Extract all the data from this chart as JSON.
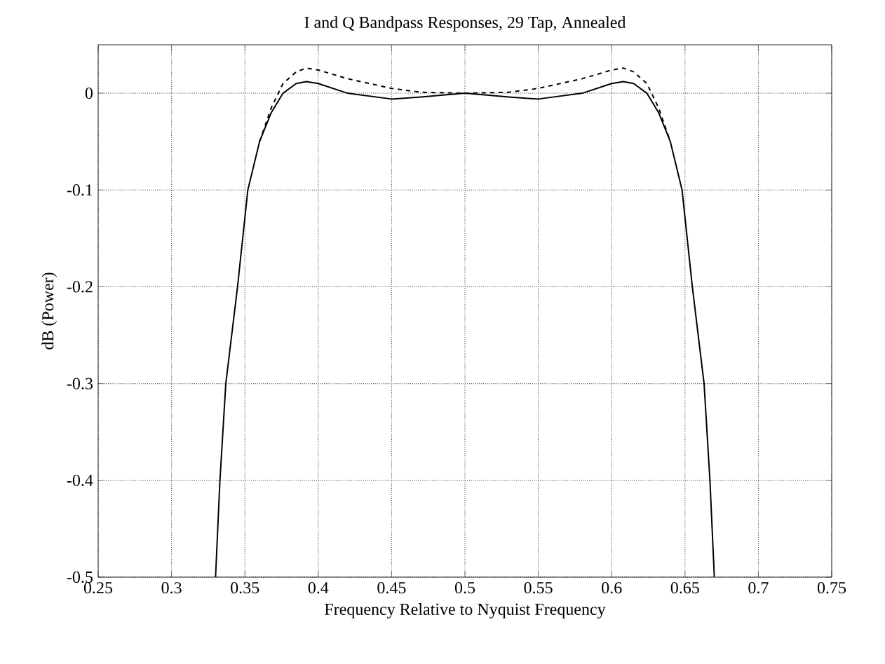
{
  "chart_data": {
    "type": "line",
    "title": "I and Q Bandpass Responses, 29 Tap, Annealed",
    "xlabel": "Frequency Relative to Nyquist Frequency",
    "ylabel": "dB (Power)",
    "xlim": [
      0.25,
      0.75
    ],
    "xticks": [
      0.25,
      0.3,
      0.35,
      0.4,
      0.45,
      0.5,
      0.55,
      0.6,
      0.65,
      0.7,
      0.75
    ],
    "ylim": [
      -0.5,
      0.05
    ],
    "yticks": [
      0,
      -0.1,
      -0.2,
      -0.3,
      -0.4,
      -0.5
    ],
    "grid": true,
    "series": [
      {
        "color": "#000000",
        "line_style": "solid",
        "x": [
          0.33,
          0.333,
          0.337,
          0.345,
          0.352,
          0.36,
          0.368,
          0.376,
          0.385,
          0.392,
          0.4,
          0.42,
          0.45,
          0.47,
          0.5,
          0.53,
          0.55,
          0.58,
          0.6,
          0.608,
          0.615,
          0.624,
          0.632,
          0.64,
          0.648,
          0.655,
          0.663,
          0.667,
          0.67
        ],
        "values": [
          -0.5,
          -0.4,
          -0.3,
          -0.2,
          -0.1,
          -0.05,
          -0.02,
          0,
          0.01,
          0.012,
          0.01,
          0.0,
          -0.006,
          -0.004,
          0,
          -0.004,
          -0.006,
          0.0,
          0.01,
          0.012,
          0.01,
          0,
          -0.02,
          -0.05,
          -0.1,
          -0.2,
          -0.3,
          -0.4,
          -0.5
        ]
      },
      {
        "color": "#000000",
        "line_style": "dashed",
        "x": [
          0.36,
          0.368,
          0.376,
          0.385,
          0.392,
          0.4,
          0.42,
          0.45,
          0.47,
          0.5,
          0.53,
          0.55,
          0.58,
          0.6,
          0.608,
          0.615,
          0.624,
          0.632,
          0.64
        ],
        "values": [
          -0.05,
          -0.015,
          0.01,
          0.022,
          0.026,
          0.024,
          0.015,
          0.005,
          0.001,
          0,
          0.001,
          0.005,
          0.015,
          0.024,
          0.026,
          0.022,
          0.01,
          -0.015,
          -0.05
        ]
      }
    ]
  }
}
